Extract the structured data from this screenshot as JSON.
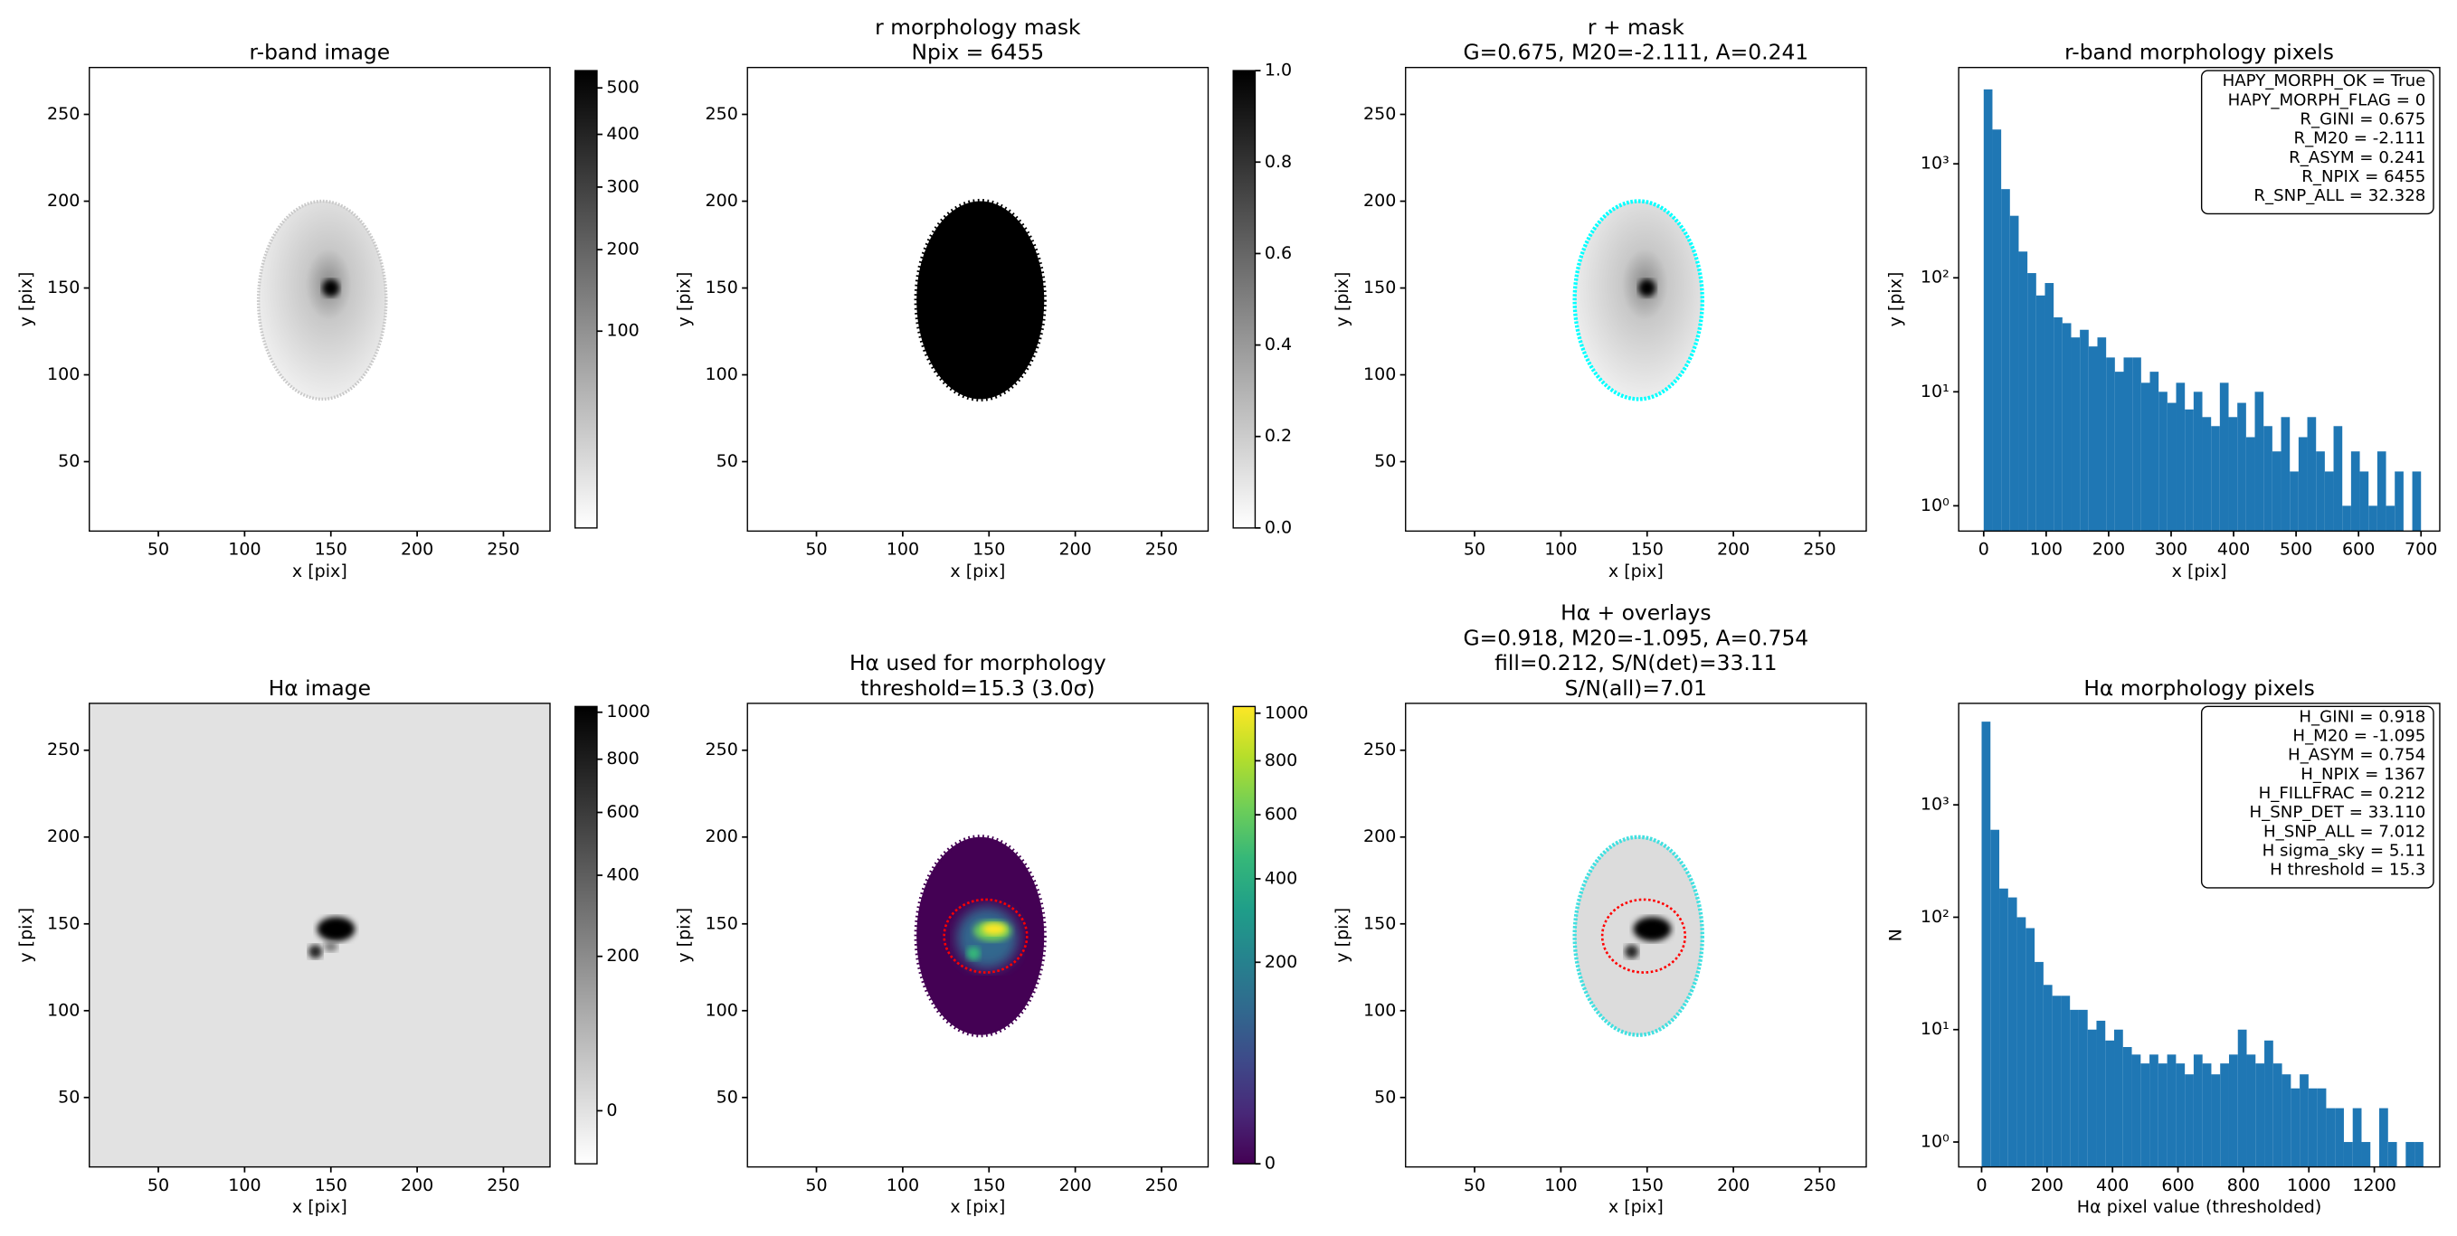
{
  "chart_data": [
    {
      "type": "image",
      "title": [
        "r-band image"
      ],
      "xlabel": "x [pix]",
      "ylabel": "y [pix]",
      "xlim": [
        10,
        277
      ],
      "ylim": [
        10,
        277
      ],
      "xticks": [
        50,
        100,
        150,
        200,
        250
      ],
      "yticks": [
        50,
        100,
        150,
        200,
        250
      ],
      "colorbar": {
        "cmap": "Greys",
        "stretch": "sqrt",
        "clim": [
          0,
          540
        ],
        "ticks": [
          100,
          200,
          300,
          400,
          500
        ]
      }
    },
    {
      "type": "image",
      "title": [
        "r morphology mask",
        "Npix = 6455"
      ],
      "xlabel": "x [pix]",
      "ylabel": "y [pix]",
      "xlim": [
        10,
        277
      ],
      "ylim": [
        10,
        277
      ],
      "xticks": [
        50,
        100,
        150,
        200,
        250
      ],
      "yticks": [
        50,
        100,
        150,
        200,
        250
      ],
      "colorbar": {
        "cmap": "Greys",
        "stretch": "linear",
        "clim": [
          0,
          1
        ],
        "ticks": [
          {
            "value": 0,
            "label": "0.0"
          },
          {
            "value": 0.2,
            "label": "0.2"
          },
          {
            "value": 0.4,
            "label": "0.4"
          },
          {
            "value": 0.6,
            "label": "0.6"
          },
          {
            "value": 0.8,
            "label": "0.8"
          },
          {
            "value": 1,
            "label": "1.0"
          }
        ]
      }
    },
    {
      "type": "image",
      "title": [
        "r + mask",
        "G=0.675, M20=-2.111, A=0.241"
      ],
      "xlabel": "x [pix]",
      "ylabel": "y [pix]",
      "xlim": [
        10,
        277
      ],
      "ylim": [
        10,
        277
      ],
      "xticks": [
        50,
        100,
        150,
        200,
        250
      ],
      "yticks": [
        50,
        100,
        150,
        200,
        250
      ]
    },
    {
      "type": "hist",
      "title": [
        "r-band morphology pixels"
      ],
      "xlabel": "x [pix]",
      "ylabel": "y [pix]",
      "color": "#1f77b4",
      "log_y": true,
      "bins": [
        0,
        14,
        28,
        42,
        56,
        70,
        84,
        98,
        112,
        126,
        140,
        154,
        168,
        182,
        196,
        210,
        224,
        238,
        252,
        266,
        280,
        294,
        308,
        322,
        336,
        350,
        364,
        378,
        392,
        406,
        420,
        434,
        448,
        462,
        476,
        490,
        504,
        518,
        532,
        546,
        560,
        574,
        588,
        602,
        616,
        630,
        644,
        658,
        672,
        686,
        700
      ],
      "counts": [
        4500,
        2000,
        600,
        350,
        170,
        110,
        70,
        90,
        45,
        40,
        30,
        35,
        25,
        30,
        20,
        15,
        20,
        20,
        12,
        15,
        10,
        8,
        12,
        7,
        10,
        6,
        5,
        12,
        6,
        8,
        4,
        10,
        5,
        3,
        6,
        2,
        4,
        6,
        3,
        2,
        5,
        1,
        3,
        2,
        1,
        3,
        1,
        2,
        0,
        2
      ],
      "xlim": [
        -40,
        730
      ],
      "ylim": [
        0.6,
        7000
      ],
      "xticks": [
        0,
        100,
        200,
        300,
        400,
        500,
        600,
        700
      ],
      "yticks": [
        {
          "value": 1,
          "label": "10⁰"
        },
        {
          "value": 10,
          "label": "10¹"
        },
        {
          "value": 100,
          "label": "10²"
        },
        {
          "value": 1000,
          "label": "10³"
        }
      ],
      "annotation": [
        "HAPY_MORPH_OK = True",
        "HAPY_MORPH_FLAG = 0",
        "R_GINI = 0.675",
        "R_M20 = -2.111",
        "R_ASYM = 0.241",
        "R_NPIX = 6455",
        "R_SNP_ALL = 32.328"
      ]
    },
    {
      "type": "image",
      "title": [
        "Hα image"
      ],
      "xlabel": "x [pix]",
      "ylabel": "y [pix]",
      "xlim": [
        10,
        277
      ],
      "ylim": [
        10,
        277
      ],
      "xticks": [
        50,
        100,
        150,
        200,
        250
      ],
      "yticks": [
        50,
        100,
        150,
        200,
        250
      ],
      "colorbar": {
        "cmap": "Greys",
        "stretch": "sqrt",
        "clim": [
          -14,
          1026
        ],
        "ticks": [
          0,
          200,
          400,
          600,
          800,
          1000
        ]
      }
    },
    {
      "type": "image",
      "title": [
        "Hα used for morphology",
        "threshold=15.3 (3.0σ)"
      ],
      "xlabel": "x [pix]",
      "ylabel": "y [pix]",
      "xlim": [
        10,
        277
      ],
      "ylim": [
        10,
        277
      ],
      "xticks": [
        50,
        100,
        150,
        200,
        250
      ],
      "yticks": [
        50,
        100,
        150,
        200,
        250
      ],
      "colorbar": {
        "cmap": "viridis",
        "stretch": "sqrt",
        "clim": [
          0,
          1030
        ],
        "ticks": [
          0,
          200,
          400,
          600,
          800,
          1000
        ]
      }
    },
    {
      "type": "image",
      "title": [
        "Hα + overlays",
        "G=0.918, M20=-1.095, A=0.754",
        "fill=0.212, S/N(det)=33.11",
        "S/N(all)=7.01"
      ],
      "xlabel": "x [pix]",
      "ylabel": "y [pix]",
      "xlim": [
        10,
        277
      ],
      "ylim": [
        10,
        277
      ],
      "xticks": [
        50,
        100,
        150,
        200,
        250
      ],
      "yticks": [
        50,
        100,
        150,
        200,
        250
      ]
    },
    {
      "type": "hist",
      "title": [
        "Hα morphology pixels"
      ],
      "xlabel": "Hα pixel value (thresholded)",
      "ylabel": "N",
      "color": "#1f77b4",
      "log_y": true,
      "bins": [
        0,
        27,
        54,
        81,
        108,
        135,
        162,
        189,
        216,
        243,
        270,
        297,
        324,
        351,
        378,
        405,
        432,
        459,
        486,
        513,
        540,
        567,
        594,
        621,
        648,
        675,
        702,
        729,
        756,
        783,
        810,
        837,
        864,
        891,
        918,
        945,
        972,
        999,
        1026,
        1053,
        1080,
        1107,
        1134,
        1161,
        1188,
        1215,
        1242,
        1269,
        1296,
        1323,
        1350
      ],
      "counts": [
        5500,
        600,
        180,
        150,
        100,
        80,
        40,
        25,
        20,
        20,
        15,
        15,
        10,
        12,
        8,
        10,
        7,
        6,
        5,
        6,
        5,
        6,
        5,
        4,
        6,
        5,
        4,
        5,
        6,
        10,
        6,
        5,
        8,
        5,
        4,
        3,
        4,
        3,
        3,
        2,
        2,
        1,
        2,
        1,
        0,
        2,
        1,
        0,
        1,
        1
      ],
      "xlim": [
        -70,
        1400
      ],
      "ylim": [
        0.6,
        8000
      ],
      "xticks": [
        0,
        200,
        400,
        600,
        800,
        1000,
        1200
      ],
      "yticks": [
        {
          "value": 1,
          "label": "10⁰"
        },
        {
          "value": 10,
          "label": "10¹"
        },
        {
          "value": 100,
          "label": "10²"
        },
        {
          "value": 1000,
          "label": "10³"
        }
      ],
      "annotation": [
        "H_GINI = 0.918",
        "H_M20 = -1.095",
        "H_ASYM = 0.754",
        "H_NPIX = 1367",
        "H_FILLFRAC = 0.212",
        "H_SNP_DET = 33.110",
        "H_SNP_ALL = 7.012",
        "H sigma_sky = 5.11",
        "H threshold = 15.3"
      ]
    }
  ]
}
